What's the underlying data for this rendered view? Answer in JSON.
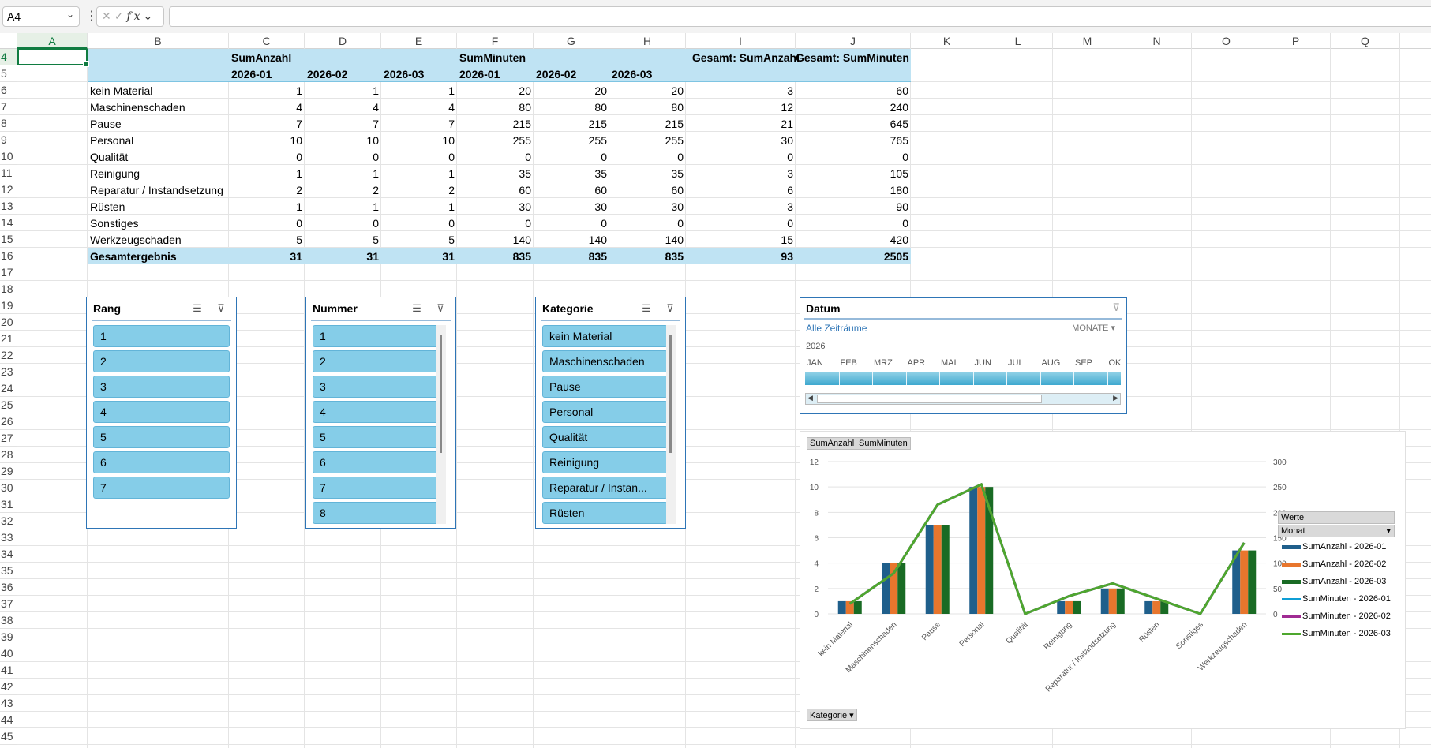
{
  "formula_bar": {
    "name_box": "A4",
    "cancel_icon": "✕",
    "enter_icon": "✓",
    "fx_icon": "fx",
    "formula": ""
  },
  "columns": [
    "A",
    "B",
    "C",
    "D",
    "E",
    "F",
    "G",
    "H",
    "I",
    "J",
    "K",
    "L",
    "M",
    "N",
    "O",
    "P",
    "Q"
  ],
  "rows": [
    "4",
    "5",
    "6",
    "7",
    "8",
    "9",
    "10",
    "11",
    "12",
    "13",
    "14",
    "15",
    "16",
    "17",
    "18",
    "19",
    "20",
    "21",
    "22",
    "23",
    "24",
    "25",
    "26",
    "27",
    "28",
    "29",
    "30",
    "31",
    "32",
    "33",
    "34",
    "35",
    "36",
    "37",
    "38",
    "39",
    "40",
    "41",
    "42",
    "43",
    "44",
    "45"
  ],
  "pivot": {
    "header1": {
      "c": "SumAnzahl",
      "f": "SumMinuten",
      "i": "Gesamt: SumAnzahl",
      "j": "Gesamt: SumMinuten"
    },
    "months": [
      "2026-01",
      "2026-02",
      "2026-03",
      "2026-01",
      "2026-02",
      "2026-03"
    ],
    "rows": [
      {
        "label": "kein Material",
        "v": [
          "1",
          "1",
          "1",
          "20",
          "20",
          "20",
          "3",
          "60"
        ]
      },
      {
        "label": "Maschinenschaden",
        "v": [
          "4",
          "4",
          "4",
          "80",
          "80",
          "80",
          "12",
          "240"
        ]
      },
      {
        "label": "Pause",
        "v": [
          "7",
          "7",
          "7",
          "215",
          "215",
          "215",
          "21",
          "645"
        ]
      },
      {
        "label": "Personal",
        "v": [
          "10",
          "10",
          "10",
          "255",
          "255",
          "255",
          "30",
          "765"
        ]
      },
      {
        "label": "Qualität",
        "v": [
          "0",
          "0",
          "0",
          "0",
          "0",
          "0",
          "0",
          "0"
        ]
      },
      {
        "label": "Reinigung",
        "v": [
          "1",
          "1",
          "1",
          "35",
          "35",
          "35",
          "3",
          "105"
        ]
      },
      {
        "label": "Reparatur / Instandsetzung",
        "v": [
          "2",
          "2",
          "2",
          "60",
          "60",
          "60",
          "6",
          "180"
        ]
      },
      {
        "label": "Rüsten",
        "v": [
          "1",
          "1",
          "1",
          "30",
          "30",
          "30",
          "3",
          "90"
        ]
      },
      {
        "label": "Sonstiges",
        "v": [
          "0",
          "0",
          "0",
          "0",
          "0",
          "0",
          "0",
          "0"
        ]
      },
      {
        "label": "Werkzeugschaden",
        "v": [
          "5",
          "5",
          "5",
          "140",
          "140",
          "140",
          "15",
          "420"
        ]
      }
    ],
    "total": {
      "label": "Gesamtergebnis",
      "v": [
        "31",
        "31",
        "31",
        "835",
        "835",
        "835",
        "93",
        "2505"
      ]
    }
  },
  "slicers": {
    "rang": {
      "title": "Rang",
      "items": [
        "1",
        "2",
        "3",
        "4",
        "5",
        "6",
        "7"
      ]
    },
    "nummer": {
      "title": "Nummer",
      "items": [
        "1",
        "2",
        "3",
        "4",
        "5",
        "6",
        "7",
        "8"
      ]
    },
    "kategorie": {
      "title": "Kategorie",
      "items": [
        "kein Material",
        "Maschinenschaden",
        "Pause",
        "Personal",
        "Qualität",
        "Reinigung",
        "Reparatur / Instan...",
        "Rüsten"
      ]
    }
  },
  "timeline": {
    "title": "Datum",
    "all_periods": "Alle Zeiträume",
    "level": "MONATE",
    "year": "2026",
    "months": [
      "JAN",
      "FEB",
      "MRZ",
      "APR",
      "MAI",
      "JUN",
      "JUL",
      "AUG",
      "SEP",
      "OKT"
    ]
  },
  "chart_buttons": {
    "sum_anzahl": "SumAnzahl",
    "sum_minuten": "SumMinuten",
    "kategorie": "Kategorie",
    "werte": "Werte",
    "monat": "Monat"
  },
  "chart_data": {
    "type": "bar",
    "categories": [
      "kein Material",
      "Maschinenschaden",
      "Pause",
      "Personal",
      "Qualität",
      "Reinigung",
      "Reparatur / Instandsetzung",
      "Rüsten",
      "Sonstiges",
      "Werkzeugschaden"
    ],
    "series": [
      {
        "name": "SumAnzahl - 2026-01",
        "type": "bar",
        "axis": "left",
        "color": "#1f5f8b",
        "values": [
          1,
          4,
          7,
          10,
          0,
          1,
          2,
          1,
          0,
          5
        ]
      },
      {
        "name": "SumAnzahl - 2026-02",
        "type": "bar",
        "axis": "left",
        "color": "#e8762d",
        "values": [
          1,
          4,
          7,
          10,
          0,
          1,
          2,
          1,
          0,
          5
        ]
      },
      {
        "name": "SumAnzahl - 2026-03",
        "type": "bar",
        "axis": "left",
        "color": "#196b24",
        "values": [
          1,
          4,
          7,
          10,
          0,
          1,
          2,
          1,
          0,
          5
        ]
      },
      {
        "name": "SumMinuten - 2026-01",
        "type": "line",
        "axis": "right",
        "color": "#0f9ed5",
        "values": [
          20,
          80,
          215,
          255,
          0,
          35,
          60,
          30,
          0,
          140
        ]
      },
      {
        "name": "SumMinuten - 2026-02",
        "type": "line",
        "axis": "right",
        "color": "#a02b93",
        "values": [
          20,
          80,
          215,
          255,
          0,
          35,
          60,
          30,
          0,
          140
        ]
      },
      {
        "name": "SumMinuten - 2026-03",
        "type": "line",
        "axis": "right",
        "color": "#4ea72e",
        "values": [
          20,
          80,
          215,
          255,
          0,
          35,
          60,
          30,
          0,
          140
        ]
      }
    ],
    "y_left": {
      "ticks": [
        "0",
        "2",
        "4",
        "6",
        "8",
        "10",
        "12"
      ],
      "range": [
        0,
        12
      ]
    },
    "y_right": {
      "ticks": [
        "0",
        "50",
        "100",
        "150",
        "200",
        "250",
        "300"
      ],
      "range": [
        0,
        300
      ]
    },
    "grid": true,
    "legend": "right"
  }
}
